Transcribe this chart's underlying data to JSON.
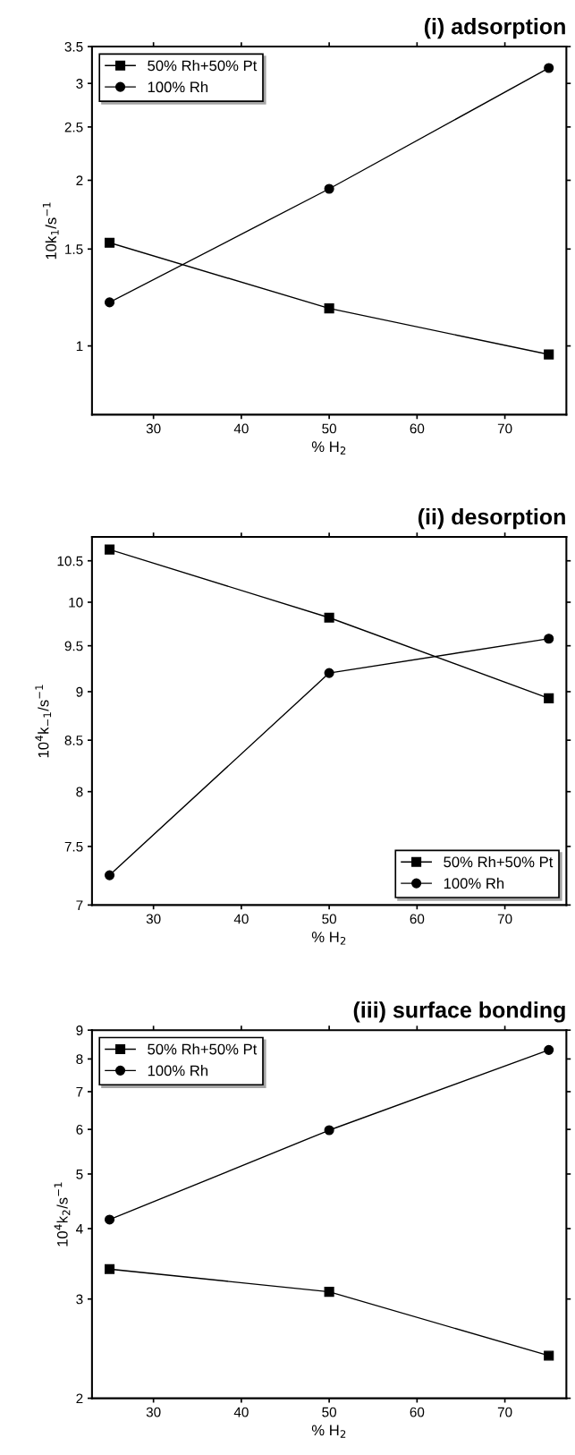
{
  "chart_data": [
    {
      "type": "line",
      "title": "(i) adsorption",
      "xlabel": "% H$_{2}$",
      "ylabel": "10k$_{1}$/s$^{−1}$",
      "log": "y",
      "x": [
        25,
        50,
        75
      ],
      "xlim": [
        23,
        77
      ],
      "xticks": [
        30,
        40,
        50,
        60,
        70
      ],
      "ylim": [
        0.75,
        3.5
      ],
      "yticks": [
        1,
        1.5,
        2,
        2.5,
        3,
        3.5
      ],
      "legend": "top left",
      "grid": false,
      "line_style": "solid",
      "series": [
        {
          "name": "50% Rh+50% Pt",
          "color": "#000000",
          "marker": "square",
          "values": [
            1.54,
            1.17,
            0.965
          ]
        },
        {
          "name": "100% Rh",
          "color": "#000000",
          "marker": "circle",
          "values": [
            1.2,
            1.93,
            3.2
          ]
        }
      ]
    },
    {
      "type": "line",
      "title": "(ii) desorption",
      "xlabel": "% H$_{2}$",
      "ylabel": "10$^{4}$k$_{−1}$/s$^{−1}$",
      "log": "y",
      "x": [
        25,
        50,
        75
      ],
      "xlim": [
        23,
        77
      ],
      "xticks": [
        30,
        40,
        50,
        60,
        70
      ],
      "ylim": [
        7,
        10.8
      ],
      "yticks": [
        7,
        7.5,
        8,
        8.5,
        9,
        9.5,
        10,
        10.5
      ],
      "legend": "bottom right",
      "grid": false,
      "line_style": "solid",
      "series": [
        {
          "name": "50% Rh+50% Pt",
          "color": "#000000",
          "marker": "square",
          "values": [
            10.64,
            9.82,
            8.93
          ]
        },
        {
          "name": "100% Rh",
          "color": "#000000",
          "marker": "circle",
          "values": [
            7.25,
            9.2,
            9.58
          ]
        }
      ]
    },
    {
      "type": "line",
      "title": "(iii) surface bonding",
      "xlabel": "% H$_{2}$",
      "ylabel": "10$^{4}$k$_{2}$/s$^{−1}$",
      "log": "y",
      "x": [
        25,
        50,
        75
      ],
      "xlim": [
        23,
        77
      ],
      "xticks": [
        30,
        40,
        50,
        60,
        70
      ],
      "ylim": [
        2,
        9
      ],
      "yticks": [
        2,
        3,
        4,
        5,
        6,
        7,
        8,
        9
      ],
      "legend": "top left",
      "grid": false,
      "line_style": "solid",
      "series": [
        {
          "name": "50% Rh+50% Pt",
          "color": "#000000",
          "marker": "square",
          "values": [
            3.39,
            3.09,
            2.38
          ]
        },
        {
          "name": "100% Rh",
          "color": "#000000",
          "marker": "circle",
          "values": [
            4.15,
            5.98,
            8.3
          ]
        }
      ]
    }
  ]
}
